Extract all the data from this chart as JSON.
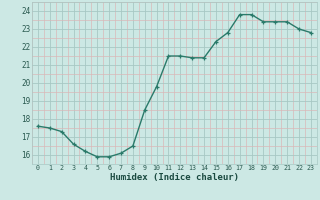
{
  "x": [
    0,
    1,
    2,
    3,
    4,
    5,
    6,
    7,
    8,
    9,
    10,
    11,
    12,
    13,
    14,
    15,
    16,
    17,
    18,
    19,
    20,
    21,
    22,
    23
  ],
  "y": [
    17.6,
    17.5,
    17.3,
    16.6,
    16.2,
    15.9,
    15.9,
    16.1,
    16.5,
    18.5,
    19.8,
    21.5,
    21.5,
    21.4,
    21.4,
    22.3,
    22.8,
    23.8,
    23.8,
    23.4,
    23.4,
    23.4,
    23.0,
    22.8
  ],
  "line_color": "#2a7a6a",
  "marker_color": "#2a7a6a",
  "bg_color": "#cce8e4",
  "minor_grid_color": "#d9b8b8",
  "major_grid_color": "#a8c8c4",
  "tick_label_color": "#2a5a50",
  "xlabel": "Humidex (Indice chaleur)",
  "xlabel_color": "#1a4a40",
  "ylim": [
    15.5,
    24.5
  ],
  "yticks": [
    16,
    17,
    18,
    19,
    20,
    21,
    22,
    23,
    24
  ],
  "xtick_labels": [
    "0",
    "1",
    "2",
    "3",
    "4",
    "5",
    "6",
    "7",
    "8",
    "9",
    "10",
    "11",
    "12",
    "13",
    "14",
    "15",
    "16",
    "17",
    "18",
    "19",
    "20",
    "21",
    "22",
    "23"
  ],
  "marker_size": 3.5,
  "line_width": 1.0
}
